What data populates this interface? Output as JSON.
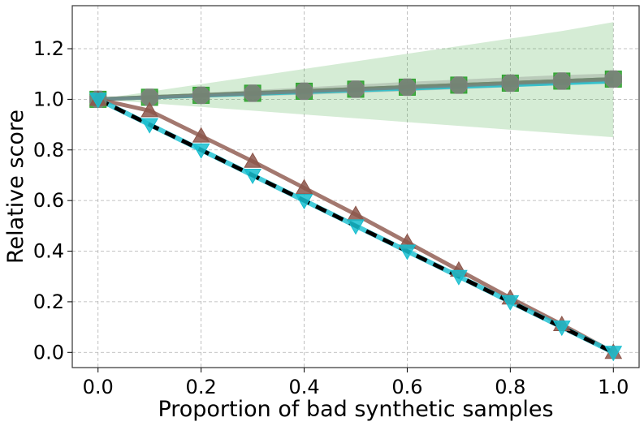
{
  "chart_data": {
    "type": "line",
    "title": "",
    "xlabel": "Proportion of bad synthetic samples",
    "ylabel": "Relative score",
    "xlim": [
      -0.05,
      1.05
    ],
    "ylim": [
      -0.06,
      1.37
    ],
    "xticks": [
      0.0,
      0.2,
      0.4,
      0.6,
      0.8,
      1.0
    ],
    "xtick_labels": [
      "0.0",
      "0.2",
      "0.4",
      "0.6",
      "0.8",
      "1.0"
    ],
    "yticks": [
      0.0,
      0.2,
      0.4,
      0.6,
      0.8,
      1.0,
      1.2
    ],
    "ytick_labels": [
      "0.0",
      "0.2",
      "0.4",
      "0.6",
      "0.8",
      "1.0",
      "1.2"
    ],
    "grid": true,
    "x": [
      0.0,
      0.1,
      0.2,
      0.3,
      0.4,
      0.5,
      0.6,
      0.7,
      0.8,
      0.9,
      1.0
    ],
    "bands": [
      {
        "color": "#2ca02c",
        "opacity": 0.2,
        "lower": [
          1.0,
          0.985,
          0.97,
          0.955,
          0.94,
          0.925,
          0.91,
          0.895,
          0.88,
          0.865,
          0.85
        ],
        "upper": [
          1.0,
          1.03,
          1.06,
          1.09,
          1.12,
          1.15,
          1.18,
          1.21,
          1.24,
          1.27,
          1.305
        ]
      },
      {
        "color": "#7f7f7f",
        "opacity": 0.3,
        "lower": [
          1.0,
          1.003,
          1.007,
          1.012,
          1.018,
          1.025,
          1.032,
          1.04,
          1.048,
          1.056,
          1.064
        ],
        "upper": [
          1.0,
          1.013,
          1.025,
          1.036,
          1.047,
          1.058,
          1.069,
          1.078,
          1.087,
          1.096,
          1.102
        ]
      }
    ],
    "series": [
      {
        "color": "#2ca02c",
        "marker": "square",
        "dash": "",
        "lw": 5,
        "values": [
          1.0,
          1.008,
          1.016,
          1.024,
          1.032,
          1.04,
          1.048,
          1.056,
          1.064,
          1.072,
          1.08
        ]
      },
      {
        "color": "#17becf",
        "marker": "none",
        "dash": "",
        "lw": 4,
        "values": [
          1.0,
          1.006,
          1.013,
          1.02,
          1.027,
          1.034,
          1.041,
          1.048,
          1.055,
          1.062,
          1.069
        ]
      },
      {
        "color": "#7f7f7f",
        "marker": "octagon",
        "dash": "",
        "lw": 5,
        "values": [
          1.0,
          1.008,
          1.016,
          1.024,
          1.032,
          1.04,
          1.048,
          1.056,
          1.064,
          1.072,
          1.08
        ]
      },
      {
        "color": "#8c564b",
        "marker": "triangle-up",
        "dash": "",
        "lw": 5,
        "values": [
          1.0,
          0.955,
          0.855,
          0.755,
          0.65,
          0.545,
          0.435,
          0.325,
          0.215,
          0.11,
          0.0
        ]
      },
      {
        "color": "#17becf",
        "marker": "triangle-down",
        "dash": "",
        "lw": 6,
        "values": [
          1.0,
          0.9,
          0.8,
          0.7,
          0.6,
          0.5,
          0.4,
          0.3,
          0.2,
          0.1,
          0.0
        ]
      },
      {
        "color": "#000000",
        "marker": "none",
        "dash": "14,9",
        "lw": 5,
        "values": [
          1.0,
          0.9,
          0.8,
          0.7,
          0.6,
          0.5,
          0.4,
          0.3,
          0.2,
          0.1,
          0.0
        ]
      }
    ]
  }
}
